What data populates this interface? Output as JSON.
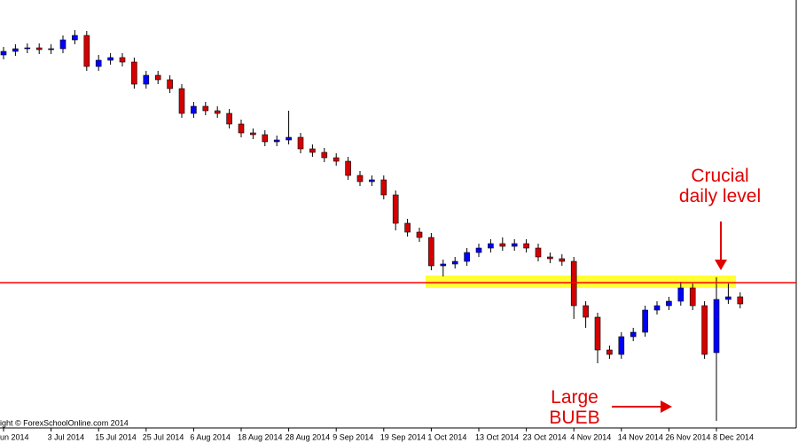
{
  "chart_data": {
    "type": "candlestick",
    "categories": [
      "un 2014",
      null,
      null,
      null,
      "3 Jul 2014",
      null,
      null,
      null,
      "15 Jul 2014",
      null,
      null,
      null,
      "25 Jul 2014",
      null,
      null,
      null,
      "6 Aug 2014",
      null,
      null,
      null,
      "18 Aug 2014",
      null,
      null,
      null,
      "28 Aug 2014",
      null,
      null,
      null,
      "9 Sep 2014",
      null,
      null,
      null,
      "19 Sep 2014",
      null,
      null,
      null,
      "1 Oct 2014",
      null,
      null,
      null,
      "13 Oct 2014",
      null,
      null,
      null,
      "23 Oct 2014",
      null,
      null,
      null,
      "4 Nov 2014",
      null,
      null,
      null,
      "14 Nov 2014",
      null,
      null,
      null,
      "26 Nov 2014",
      null,
      null,
      null,
      "8 Dec 2014",
      null,
      null
    ],
    "open": [
      1.369,
      1.371,
      1.3725,
      1.373,
      1.372,
      1.3725,
      1.3775,
      1.38,
      1.3625,
      1.366,
      1.3675,
      1.365,
      1.3525,
      1.3575,
      1.355,
      1.35,
      1.336,
      1.34,
      1.3375,
      1.336,
      1.33,
      1.325,
      1.324,
      1.32,
      1.321,
      1.3225,
      1.316,
      1.314,
      1.311,
      1.309,
      1.301,
      1.2975,
      1.2985,
      1.29,
      1.274,
      1.269,
      1.266,
      1.25,
      1.251,
      1.2525,
      1.2575,
      1.26,
      1.2625,
      1.261,
      1.2625,
      1.26,
      1.255,
      1.254,
      1.2525,
      1.2275,
      1.221,
      1.2025,
      1.2,
      1.21,
      1.2125,
      1.225,
      1.2275,
      1.23,
      1.2375,
      1.2275,
      1.201,
      1.231,
      1.2325
    ],
    "high": [
      1.3735,
      1.375,
      1.3755,
      1.3755,
      1.375,
      1.38,
      1.383,
      1.3825,
      1.369,
      1.37,
      1.37,
      1.3675,
      1.36,
      1.36,
      1.3575,
      1.3525,
      1.3425,
      1.3425,
      1.34,
      1.3385,
      1.3325,
      1.3275,
      1.3265,
      1.3235,
      1.3375,
      1.325,
      1.3185,
      1.3165,
      1.3135,
      1.3115,
      1.3035,
      1.301,
      1.301,
      1.2925,
      1.2765,
      1.2715,
      1.2685,
      1.2535,
      1.255,
      1.26,
      1.2625,
      1.265,
      1.266,
      1.265,
      1.265,
      1.2625,
      1.2575,
      1.2565,
      1.255,
      1.23,
      1.2235,
      1.205,
      1.2125,
      1.215,
      1.2275,
      1.23,
      1.2325,
      1.241,
      1.24,
      1.23,
      1.2435,
      1.24,
      1.235
    ],
    "low": [
      1.3665,
      1.3685,
      1.37,
      1.3695,
      1.3695,
      1.37,
      1.375,
      1.36,
      1.36,
      1.3635,
      1.3625,
      1.35,
      1.35,
      1.3525,
      1.3475,
      1.3335,
      1.3335,
      1.335,
      1.3335,
      1.3275,
      1.3225,
      1.3215,
      1.3175,
      1.3175,
      1.3185,
      1.3135,
      1.3115,
      1.3085,
      1.3065,
      1.2985,
      1.295,
      1.295,
      1.2875,
      1.27,
      1.2665,
      1.2635,
      1.2475,
      1.244,
      1.2485,
      1.25,
      1.255,
      1.2575,
      1.2585,
      1.2585,
      1.2575,
      1.2525,
      1.2515,
      1.25,
      1.22,
      1.215,
      1.195,
      1.1975,
      1.1975,
      1.2075,
      1.21,
      1.2225,
      1.225,
      1.2275,
      1.225,
      1.1975,
      1.1625,
      1.2285,
      1.226
    ],
    "close": [
      1.371,
      1.3725,
      1.373,
      1.372,
      1.3725,
      1.3775,
      1.38,
      1.3625,
      1.366,
      1.3675,
      1.365,
      1.3525,
      1.3575,
      1.355,
      1.35,
      1.336,
      1.34,
      1.3375,
      1.336,
      1.33,
      1.325,
      1.324,
      1.32,
      1.321,
      1.3225,
      1.316,
      1.314,
      1.311,
      1.309,
      1.301,
      1.2975,
      1.2985,
      1.29,
      1.274,
      1.269,
      1.266,
      1.25,
      1.251,
      1.2525,
      1.2575,
      1.26,
      1.2625,
      1.261,
      1.2625,
      1.26,
      1.255,
      1.254,
      1.2525,
      1.2275,
      1.221,
      1.2025,
      1.2,
      1.21,
      1.2125,
      1.225,
      1.2275,
      1.23,
      1.2375,
      1.2275,
      1.2,
      1.231,
      1.2325,
      1.2285
    ],
    "up_color": "#0000ff",
    "down_color": "#d40000",
    "ylim": [
      1.16,
      1.4
    ],
    "level": 1.2405,
    "level_color": "#ff0000",
    "zone": [
      1.2375,
      1.2445
    ],
    "zone_color": "#ffff33",
    "annotations": [
      {
        "lines": [
          "Crucial",
          "daily level"
        ],
        "color": "#e00000"
      },
      {
        "lines": [
          "Large",
          "BUEB"
        ],
        "color": "#e00000"
      }
    ],
    "copyright": "ight © ForexSchoolOnline.com 2014"
  }
}
